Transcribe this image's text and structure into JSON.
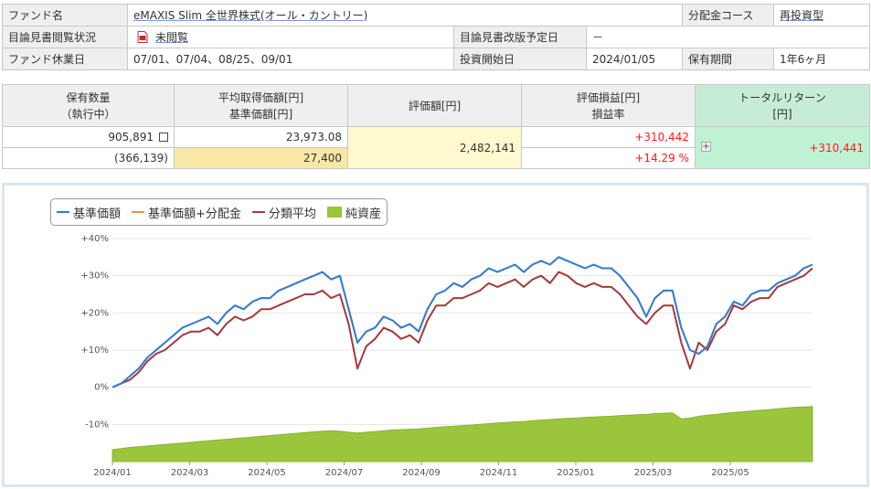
{
  "info": {
    "fund_name_label": "ファンド名",
    "fund_name": "eMAXIS Slim 全世界株式(オール・カントリー)",
    "dividend_course_label": "分配金コース",
    "dividend_course": "再投資型",
    "prospectus_status_label": "目論見書閲覧状況",
    "prospectus_status": "未閲覧",
    "prospectus_revision_label": "目論見書改版予定日",
    "prospectus_revision": "－",
    "holiday_label": "ファンド休業日",
    "holidays": "07/01、07/04、08/25、09/01",
    "start_label": "投資開始日",
    "start_date": "2024/01/05",
    "period_label": "保有期間",
    "period": "1年6ヶ月"
  },
  "position": {
    "head_qty_1": "保有数量",
    "head_qty_2": "（執行中）",
    "head_avg_1": "平均取得価額[円]",
    "head_avg_2": "基準価額[円]",
    "head_value": "評価額[円]",
    "head_pl_1": "評価損益[円]",
    "head_pl_2": "損益率",
    "head_tr_1": "トータルリターン",
    "head_tr_2": "[円]",
    "qty": "905,891",
    "qty_pending": "(366,139)",
    "avg_cost": "23,973.08",
    "nav": "27,400",
    "value": "2,482,141",
    "pl": "+310,442",
    "pl_rate": "+14.29 %",
    "total_return": "+310,441",
    "plus_icon": "+"
  },
  "chart_data": {
    "type": "line",
    "legend": [
      "基準価額",
      "基準価額+分配金",
      "分類平均",
      "純資産"
    ],
    "colors": {
      "nav": "#2f7ed8",
      "nav_div": "#f28f43",
      "category": "#a33a3a",
      "assets": "#9bc53d"
    },
    "y_ticks": [
      "+40%",
      "+30%",
      "+20%",
      "+10%",
      "0%",
      "-10%"
    ],
    "ylim": [
      -20,
      40
    ],
    "x_ticks": [
      "2024/01",
      "2024/03",
      "2024/05",
      "2024/07",
      "2024/09",
      "2024/11",
      "2025/01",
      "2025/03",
      "2025/05"
    ],
    "series": [
      {
        "name": "基準価額",
        "values": [
          0,
          1,
          3,
          5,
          8,
          10,
          12,
          14,
          16,
          17,
          18,
          19,
          17,
          20,
          22,
          21,
          23,
          24,
          24,
          26,
          27,
          28,
          29,
          30,
          31,
          29,
          30,
          21,
          12,
          15,
          16,
          19,
          18,
          16,
          17,
          15,
          21,
          25,
          26,
          28,
          27,
          29,
          30,
          32,
          31,
          32,
          33,
          31,
          33,
          34,
          33,
          35,
          34,
          33,
          32,
          33,
          32,
          32,
          30,
          27,
          24,
          19,
          24,
          26,
          26,
          16,
          10,
          9,
          11,
          17,
          19,
          23,
          22,
          25,
          26,
          26,
          28,
          29,
          30,
          32,
          33
        ]
      },
      {
        "name": "基準価額+分配金",
        "values": [
          0,
          1,
          3,
          5,
          8,
          10,
          12,
          14,
          16,
          17,
          18,
          19,
          17,
          20,
          22,
          21,
          23,
          24,
          24,
          26,
          27,
          28,
          29,
          30,
          31,
          29,
          30,
          21,
          12,
          15,
          16,
          19,
          18,
          16,
          17,
          15,
          21,
          25,
          26,
          28,
          27,
          29,
          30,
          32,
          31,
          32,
          33,
          31,
          33,
          34,
          33,
          35,
          34,
          33,
          32,
          33,
          32,
          32,
          30,
          27,
          24,
          19,
          24,
          26,
          26,
          16,
          10,
          9,
          11,
          17,
          19,
          23,
          22,
          25,
          26,
          26,
          28,
          29,
          30,
          32,
          33
        ]
      },
      {
        "name": "分類平均",
        "values": [
          0,
          1,
          2,
          4,
          7,
          9,
          10,
          12,
          14,
          15,
          15,
          16,
          14,
          17,
          19,
          18,
          19,
          21,
          21,
          22,
          23,
          24,
          25,
          25,
          26,
          24,
          25,
          17,
          5,
          11,
          13,
          16,
          15,
          13,
          14,
          12,
          18,
          22,
          22,
          24,
          24,
          25,
          26,
          28,
          27,
          28,
          29,
          27,
          29,
          30,
          28,
          31,
          30,
          28,
          27,
          28,
          27,
          27,
          25,
          22,
          19,
          17,
          20,
          22,
          22,
          12,
          5,
          12,
          10,
          15,
          17,
          22,
          21,
          23,
          24,
          24,
          27,
          28,
          29,
          30,
          32
        ]
      },
      {
        "name": "純資産",
        "values": [
          -16.8,
          -16.5,
          -16.2,
          -16,
          -15.8,
          -15.6,
          -15.4,
          -15.2,
          -15,
          -14.8,
          -14.6,
          -14.4,
          -14.2,
          -14,
          -13.8,
          -13.6,
          -13.4,
          -13.2,
          -13,
          -12.8,
          -12.6,
          -12.4,
          -12.2,
          -12,
          -11.8,
          -11.7,
          -11.8,
          -12.1,
          -12.3,
          -12.1,
          -11.9,
          -11.7,
          -11.5,
          -11.4,
          -11.3,
          -11.2,
          -11,
          -10.8,
          -10.6,
          -10.5,
          -10.3,
          -10.2,
          -10,
          -9.8,
          -9.6,
          -9.5,
          -9.3,
          -9.2,
          -9,
          -8.8,
          -8.7,
          -8.5,
          -8.4,
          -8.3,
          -8.1,
          -8,
          -7.9,
          -7.8,
          -7.6,
          -7.5,
          -7.4,
          -7.3,
          -7.1,
          -7,
          -6.9,
          -8.5,
          -8.3,
          -7.8,
          -7.5,
          -7.3,
          -7,
          -6.8,
          -6.6,
          -6.4,
          -6.2,
          -6,
          -5.8,
          -5.6,
          -5.4,
          -5.3,
          -5.2
        ]
      }
    ]
  }
}
